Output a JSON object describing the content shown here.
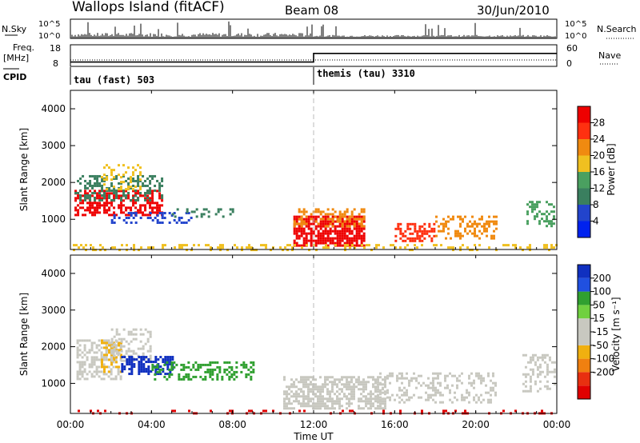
{
  "header": {
    "station": "Wallops Island (fitACF)",
    "beam": "Beam 08",
    "date": "30/Jun/2010"
  },
  "colors": {
    "axis": "#000000",
    "midnight_marker": "#bbbbbb",
    "power_scale": [
      "#0022ee",
      "#2244cc",
      "#3a7f5f",
      "#4aa060",
      "#f0c020",
      "#f08a10",
      "#ff3010",
      "#ee0000"
    ],
    "velocity_scale": [
      "#1030c0",
      "#2050e0",
      "#30a030",
      "#70d040",
      "#c8c8c0",
      "#c8c8c0",
      "#f0b010",
      "#f08010",
      "#e83010",
      "#e00000"
    ]
  },
  "chart_data": [
    {
      "id": "nsky",
      "type": "bar",
      "left_label": "N.Sky",
      "right_label": "N.Search",
      "left_ticks": [
        "10^5",
        "10^0"
      ],
      "right_ticks": [
        "10^5",
        "10^0"
      ],
      "y_scale": "log",
      "note": "count of sky noise per scan, mostly near 10^0 with spikes before 04:00"
    },
    {
      "id": "freq",
      "type": "line",
      "left_label": "Freq.",
      "left_unit": "[MHz]",
      "right_label": "Nave",
      "left_ticks": [
        "18",
        "8"
      ],
      "right_ticks": [
        "60",
        "0"
      ],
      "series": [
        {
          "name": "Freq",
          "x": [
            "00:00",
            "12:00",
            "12:00",
            "24:00"
          ],
          "y": [
            10,
            10,
            14,
            14
          ]
        }
      ]
    },
    {
      "id": "cpid",
      "type": "table",
      "label": "CPID",
      "segments": [
        {
          "start": "00:00",
          "name": "tau (fast) 503"
        },
        {
          "start": "12:00",
          "name": "themis (tau) 3310"
        }
      ]
    },
    {
      "id": "power",
      "type": "heatmap",
      "ylabel": "Slant Range [km]",
      "yticks": [
        1000,
        2000,
        3000,
        4000
      ],
      "ylim": [
        180,
        4500
      ],
      "xlim": [
        "00:00",
        "24:00"
      ],
      "colorbar": {
        "label": "Power [dB]",
        "ticks": [
          4,
          8,
          12,
          16,
          20,
          24,
          28
        ]
      }
    },
    {
      "id": "velocity",
      "type": "heatmap",
      "ylabel": "Slant Range [km]",
      "yticks": [
        1000,
        2000,
        3000,
        4000
      ],
      "ylim": [
        180,
        4500
      ],
      "xlim": [
        "00:00",
        "24:00"
      ],
      "colorbar": {
        "label": "Velocity [m s⁻¹]",
        "ticks": [
          200,
          100,
          50,
          15,
          -15,
          -50,
          -100,
          -200
        ]
      }
    }
  ],
  "xaxis": {
    "ticks": [
      "00:00",
      "04:00",
      "08:00",
      "12:00",
      "16:00",
      "20:00",
      "00:00"
    ],
    "label": "Time UT"
  }
}
